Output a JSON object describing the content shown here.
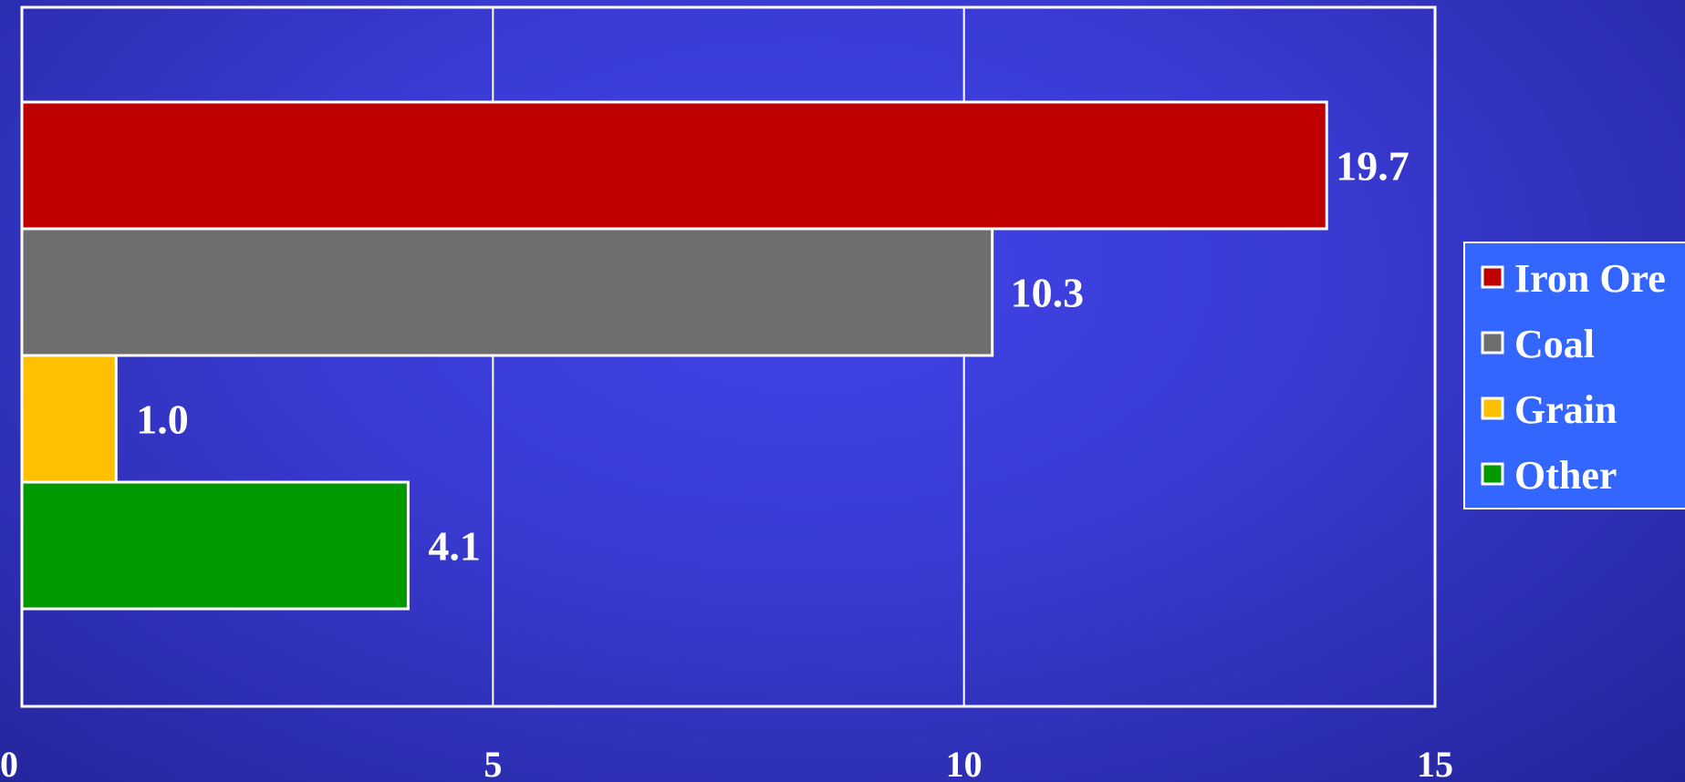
{
  "chart_data": {
    "type": "bar",
    "orientation": "horizontal",
    "categories": [
      "Iron Ore",
      "Coal",
      "Grain",
      "Other"
    ],
    "values": [
      19.7,
      10.3,
      1.0,
      4.1
    ],
    "data_labels": [
      "19.7",
      "10.3",
      "1.0",
      "4.1"
    ],
    "colors": [
      "#bf0000",
      "#6e6e6e",
      "#ffc000",
      "#009900"
    ],
    "xlim": [
      0,
      15
    ],
    "xticks": [
      0,
      5,
      10,
      15
    ],
    "xtick_labels": [
      "0",
      "5",
      "10",
      "15"
    ],
    "grid": true,
    "legend_position": "right",
    "title": "",
    "xlabel": "",
    "ylabel": ""
  },
  "legend": {
    "items": [
      {
        "label": "Iron Ore",
        "color": "#bf0000"
      },
      {
        "label": "Coal",
        "color": "#6e6e6e"
      },
      {
        "label": "Grain",
        "color": "#ffc000"
      },
      {
        "label": "Other",
        "color": "#009900"
      }
    ],
    "background": "#3366ff"
  }
}
